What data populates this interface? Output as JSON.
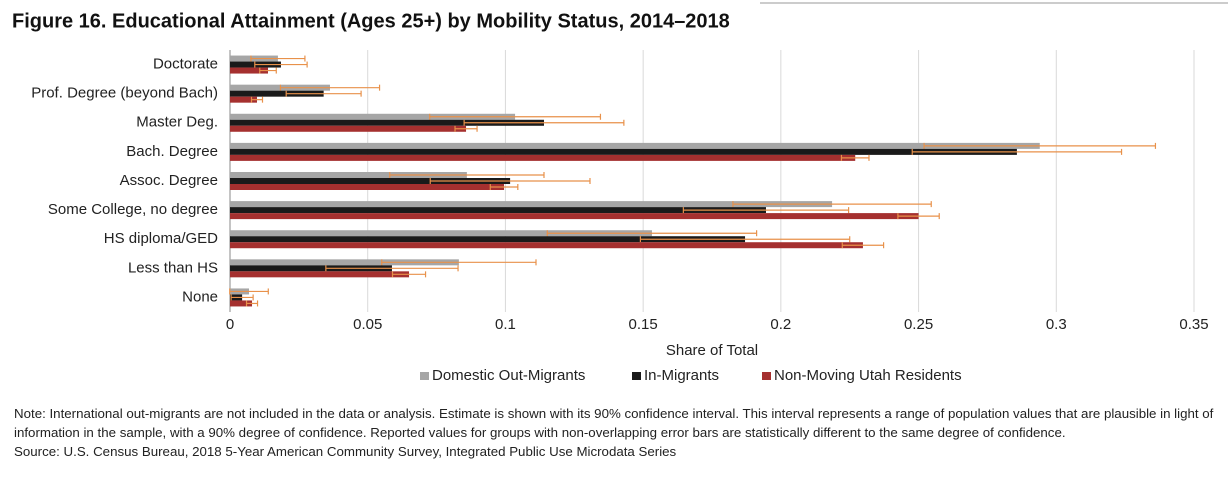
{
  "chart_data": {
    "type": "hbar",
    "title": "Figure 16. Educational Attainment (Ages 25+) by Mobility Status, 2014–2018",
    "categories": [
      "Doctorate",
      "Prof. Degree (beyond Bach)",
      "Master Deg.",
      "Bach. Degree",
      "Assoc. Degree",
      "Some College, no degree",
      "HS diploma/GED",
      "Less than HS",
      "None"
    ],
    "series": [
      {
        "name": "Domestic Out-Migrants",
        "color": "#a6a6a6",
        "values": [
          0.0174,
          0.0363,
          0.1035,
          0.294,
          0.086,
          0.2186,
          0.1532,
          0.0831,
          0.0069
        ],
        "errors": [
          0.0098,
          0.018,
          0.031,
          0.042,
          0.028,
          0.036,
          0.038,
          0.028,
          0.007
        ]
      },
      {
        "name": "In-Migrants",
        "color": "#1a1a1a",
        "values": [
          0.0185,
          0.034,
          0.114,
          0.2857,
          0.1017,
          0.1946,
          0.187,
          0.0588,
          0.0044
        ],
        "errors": [
          0.0095,
          0.0136,
          0.029,
          0.038,
          0.029,
          0.03,
          0.038,
          0.024,
          0.004
        ]
      },
      {
        "name": "Non-Moving Utah Residents",
        "color": "#a5302f",
        "values": [
          0.0138,
          0.0098,
          0.0857,
          0.227,
          0.0995,
          0.25,
          0.2298,
          0.065,
          0.008
        ],
        "errors": [
          0.003,
          0.002,
          0.004,
          0.005,
          0.005,
          0.0075,
          0.0075,
          0.006,
          0.002
        ]
      }
    ],
    "error_color": "#e8914a",
    "xlim": [
      0,
      0.35
    ],
    "xticks": [
      0,
      0.05,
      0.1,
      0.15,
      0.2,
      0.25,
      0.3,
      0.35
    ],
    "grid": true,
    "xlabel": "Share of Total",
    "note": "Note: International out-migrants are not included in the data or analysis. Estimate is shown with its 90% confidence interval. This interval represents a range of population values that are plausible in light of information in the sample, with a 90% degree of confidence. Reported values for groups with non-overlapping error bars are statistically different to the same degree of confidence.",
    "source": "Source: U.S. Census Bureau, 2018 5-Year American Community Survey, Integrated Public Use Microdata Series"
  }
}
